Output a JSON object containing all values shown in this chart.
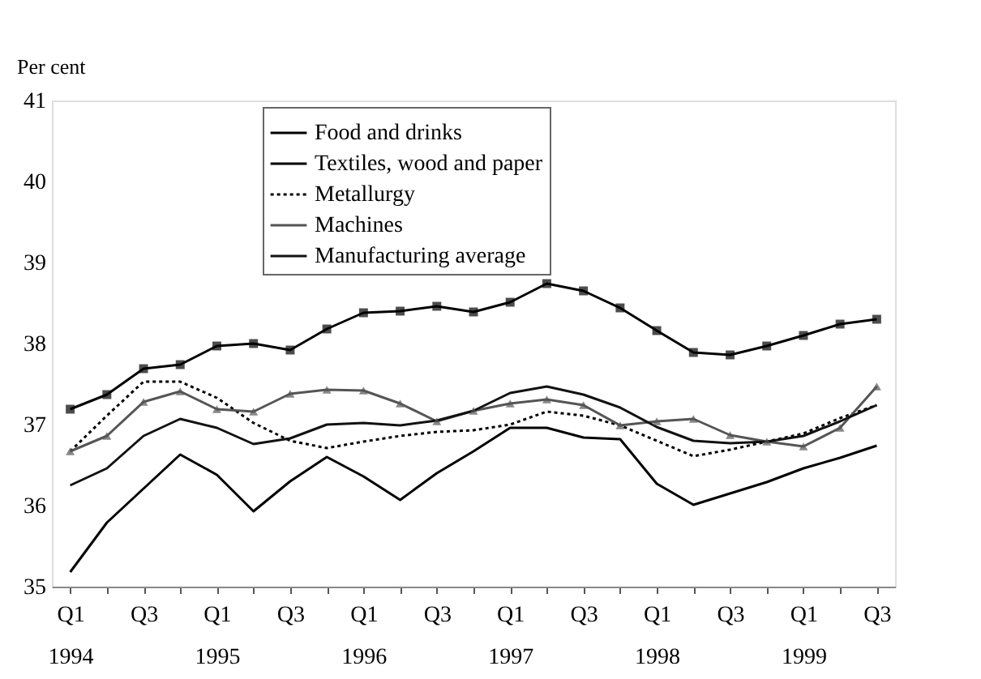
{
  "chart_data": {
    "type": "line",
    "ylabel": "Per cent",
    "categories": [
      "Q1\n1994",
      null,
      "Q3",
      null,
      "Q1\n1995",
      null,
      "Q3",
      null,
      "Q1\n1996",
      null,
      "Q3",
      null,
      "Q1\n1997",
      null,
      "Q3",
      null,
      "Q1\n1998",
      null,
      "Q3",
      null,
      "Q1\n1999",
      null,
      "Q3"
    ],
    "ylim": [
      35,
      41
    ],
    "yticks": [
      35,
      36,
      37,
      38,
      39,
      40,
      41
    ],
    "grid": false,
    "legend": "top",
    "series": [
      {
        "name": "Food and drinks",
        "color": "#000000",
        "marker": "square",
        "line_style": "solid",
        "values": [
          37.19,
          37.37,
          37.69,
          37.74,
          37.97,
          38.0,
          37.92,
          38.18,
          38.38,
          38.4,
          38.46,
          38.39,
          38.51,
          38.74,
          38.65,
          38.44,
          38.16,
          37.89,
          37.86,
          37.97,
          38.1,
          38.24,
          38.3
        ]
      },
      {
        "name": "Textiles, wood and paper",
        "color": "#000000",
        "marker": "none",
        "line_style": "solid",
        "values": [
          35.18,
          35.79,
          36.21,
          36.63,
          36.38,
          35.93,
          36.3,
          36.6,
          36.36,
          36.07,
          36.4,
          36.67,
          36.96,
          36.96,
          36.84,
          36.82,
          36.27,
          36.01,
          36.15,
          36.29,
          36.46,
          36.59,
          36.74
        ]
      },
      {
        "name": "Metallurgy",
        "color": "#000000",
        "marker": "none",
        "line_style": "dotted",
        "values": [
          36.67,
          37.11,
          37.53,
          37.53,
          37.33,
          37.02,
          36.8,
          36.71,
          36.79,
          36.86,
          36.91,
          36.93,
          37.0,
          37.16,
          37.11,
          36.99,
          36.8,
          36.61,
          36.69,
          36.79,
          36.89,
          37.08,
          37.24
        ]
      },
      {
        "name": "Machines",
        "color": "#555555",
        "marker": "triangle",
        "line_style": "solid",
        "values": [
          36.67,
          36.86,
          37.28,
          37.41,
          37.19,
          37.16,
          37.38,
          37.43,
          37.42,
          37.26,
          37.04,
          37.17,
          37.26,
          37.31,
          37.24,
          36.99,
          37.04,
          37.07,
          36.87,
          36.79,
          36.73,
          36.96,
          37.47
        ]
      },
      {
        "name": "Manufacturing average",
        "color": "#111111",
        "marker": "none",
        "line_style": "solid",
        "values": [
          36.25,
          36.46,
          36.86,
          37.07,
          36.96,
          36.76,
          36.83,
          37.0,
          37.02,
          36.99,
          37.05,
          37.17,
          37.39,
          37.47,
          37.37,
          37.21,
          36.97,
          36.8,
          36.77,
          36.79,
          36.86,
          37.04,
          37.24
        ]
      }
    ]
  }
}
